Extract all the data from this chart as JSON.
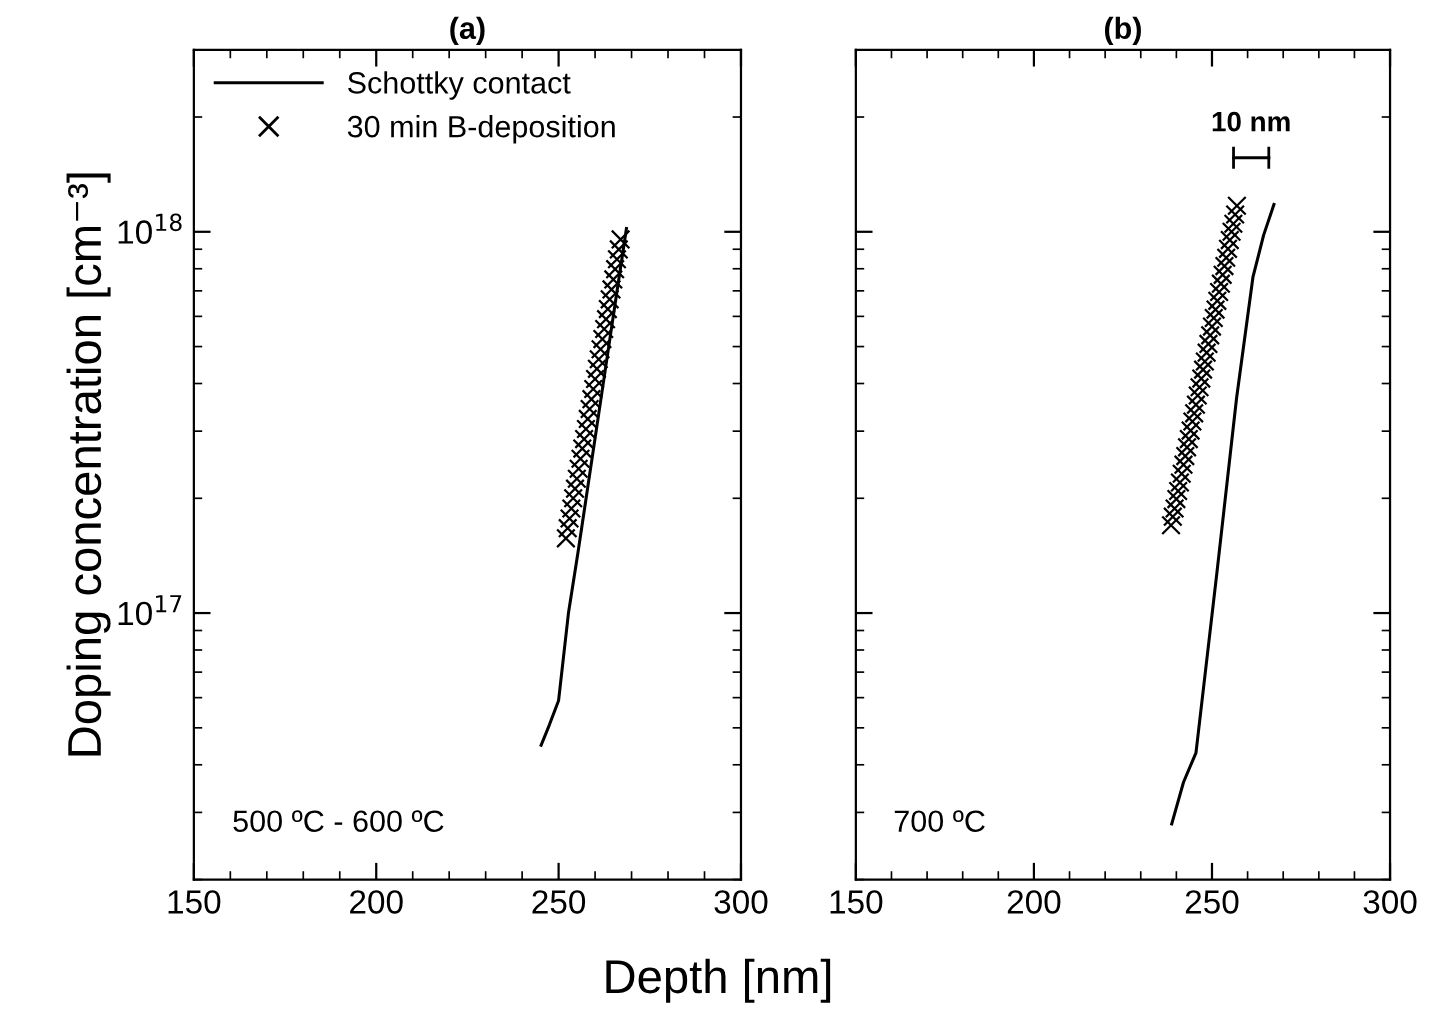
{
  "chart_data": [
    {
      "type": "line",
      "title": "(a)",
      "ylabel": "Doping concentration [cm⁻³]",
      "xlabel": "Depth [nm]",
      "xlim": [
        150,
        300
      ],
      "xticks": [
        150,
        200,
        250,
        300
      ],
      "ylim": [
        2e+16,
        3e+18
      ],
      "yticks": [
        {
          "value": 1e+17,
          "label": "10$^{17}$"
        },
        {
          "value": 1e+18,
          "label": "10$^{18}$"
        }
      ],
      "log": "y",
      "grid": false,
      "legend": "top left",
      "annotations": [
        "500 ºC - 600 ºC"
      ],
      "series": [
        {
          "name": "Schottky contact",
          "type": "line",
          "color": "#000000",
          "marker": "none",
          "line_style": "solid",
          "x": [
            245.2,
            247.5,
            250,
            252.7,
            255.3,
            258,
            261,
            264,
            266,
            268.6
          ],
          "values": [
            4.5e+16,
            5.1e+16,
            5.9e+16,
            1e+17,
            1.44e+17,
            2.14e+17,
            3.33e+17,
            5.19e+17,
            6.97e+17,
            1.02e+18
          ]
        },
        {
          "name": "30 min B-deposition",
          "type": "scatter",
          "color": "#000000",
          "marker": "cross",
          "x": [
            252,
            252.5,
            253,
            253.5,
            254,
            254.5,
            255,
            255.5,
            256,
            256.5,
            257,
            257.5,
            258,
            258.5,
            259,
            259.5,
            260,
            260.5,
            261,
            261.5,
            262,
            262.5,
            263,
            263.5,
            264,
            264.5,
            265,
            265.5,
            266,
            266.5,
            267
          ],
          "values": [
            1.57e+17,
            1.67e+17,
            1.77e+17,
            1.88e+17,
            2e+17,
            2.12e+17,
            2.25e+17,
            2.39e+17,
            2.54e+17,
            2.7e+17,
            2.86e+17,
            3.04e+17,
            3.23e+17,
            3.43e+17,
            3.64e+17,
            3.87e+17,
            4.11e+17,
            4.37e+17,
            4.63e+17,
            4.92e+17,
            5.23e+17,
            5.56e+17,
            5.9e+17,
            6.27e+17,
            6.65e+17,
            7.06e+17,
            7.5e+17,
            7.98e+17,
            8.47e+17,
            8.99e+17,
            9.55e+17
          ]
        }
      ]
    },
    {
      "type": "line",
      "title": "(b)",
      "xlim": [
        150,
        300
      ],
      "xticks": [
        150,
        200,
        250,
        300
      ],
      "ylim": [
        2e+16,
        3e+18
      ],
      "log": "y",
      "grid": false,
      "tick_labels": "x",
      "annotations": [
        "700 ºC",
        "10 nm"
      ],
      "series": [
        {
          "type": "line",
          "color": "#000000",
          "marker": "none",
          "line_style": "solid",
          "x": [
            238.7,
            242,
            245.5,
            251.4,
            256.9,
            261.5,
            264.5,
            267.4
          ],
          "values": [
            2.8e+16,
            3.6e+16,
            4.3e+16,
            1.28e+17,
            3.66e+17,
            7.6e+17,
            9.8e+17,
            1.18e+18
          ]
        },
        {
          "type": "scatter",
          "color": "#000000",
          "marker": "cross",
          "x": [
            238.5,
            239,
            239.5,
            240,
            240.5,
            241,
            241.5,
            242,
            242.5,
            243,
            243.5,
            244,
            244.5,
            245,
            245.5,
            246,
            246.5,
            247,
            247.5,
            248,
            248.5,
            249,
            249.5,
            250,
            250.5,
            251,
            251.5,
            252,
            252.5,
            253,
            253.5,
            254,
            254.5,
            255,
            255.5,
            256,
            256.5,
            257
          ],
          "values": [
            1.7e+17,
            1.79e+17,
            1.88e+17,
            1.99e+17,
            2.09e+17,
            2.2e+17,
            2.32e+17,
            2.45e+17,
            2.58e+17,
            2.72e+17,
            2.86e+17,
            3.01e+17,
            3.18e+17,
            3.34e+17,
            3.52e+17,
            3.72e+17,
            3.91e+17,
            4.12e+17,
            4.35e+17,
            4.57e+17,
            4.82e+17,
            5.08e+17,
            5.35e+17,
            5.64e+17,
            5.94e+17,
            6.25e+17,
            6.59e+17,
            6.95e+17,
            7.31e+17,
            7.71e+17,
            8.13e+17,
            8.55e+17,
            9.02e+17,
            9.51e+17,
            1e+18,
            1.05e+18,
            1.11e+18,
            1.17e+18
          ]
        }
      ]
    }
  ]
}
